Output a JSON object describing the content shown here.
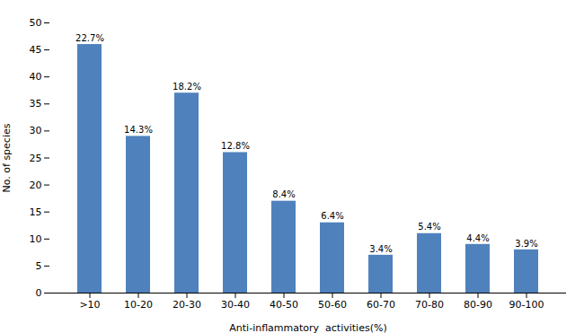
{
  "chart_data": {
    "type": "bar",
    "categories": [
      ">10",
      "10-20",
      "20-30",
      "30-40",
      "40-50",
      "50-60",
      "60-70",
      "70-80",
      "80-90",
      "90-100"
    ],
    "values": [
      46,
      29,
      37,
      26,
      17,
      13,
      7,
      11,
      9,
      8
    ],
    "annotations": [
      "22.7%",
      "14.3%",
      "18.2%",
      "12.8%",
      "8.4%",
      "6.4%",
      "3.4%",
      "5.4%",
      "4.4%",
      "3.9%"
    ],
    "color": "#4f81bd",
    "xlabel": "Anti-inflammatory  activities(%)",
    "ylabel": "No. of species",
    "ylim": [
      0,
      50
    ],
    "yticks": [
      0,
      5,
      10,
      15,
      20,
      25,
      30,
      35,
      40,
      45,
      50
    ],
    "grid": false
  }
}
